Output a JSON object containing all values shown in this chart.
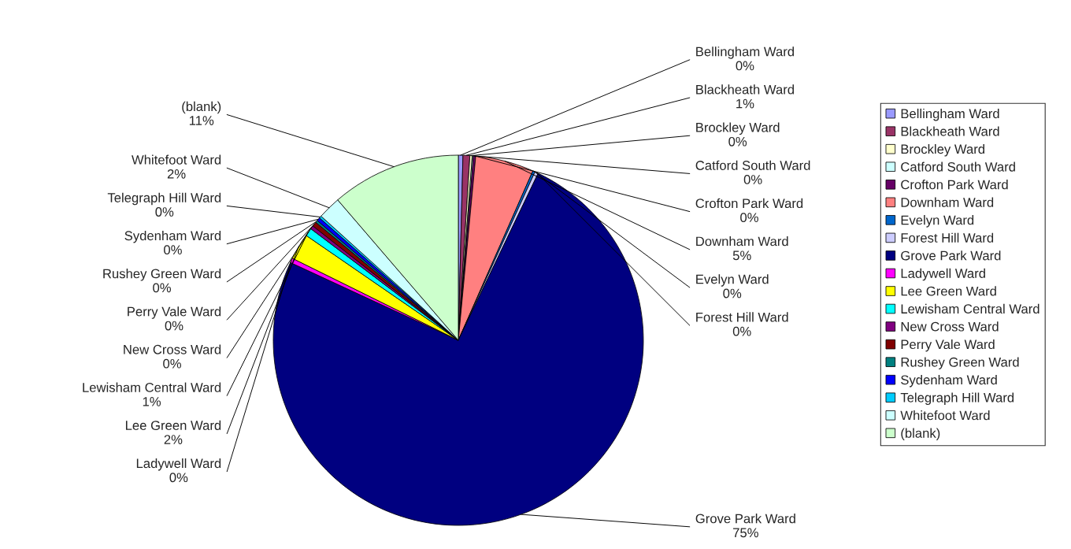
{
  "chart_data": {
    "type": "pie",
    "categories": [
      "Bellingham Ward",
      "Blackheath Ward",
      "Brockley Ward",
      "Catford South Ward",
      "Crofton Park Ward",
      "Downham Ward",
      "Evelyn Ward",
      "Forest Hill Ward",
      "Grove Park Ward",
      "Ladywell Ward",
      "Lee Green Ward",
      "Lewisham Central Ward",
      "New Cross Ward",
      "Perry Vale Ward",
      "Rushey Green Ward",
      "Sydenham Ward",
      "Telegraph Hill Ward",
      "Whitefoot Ward",
      "(blank)"
    ],
    "values": [
      0.4,
      0.6,
      0.2,
      0.1,
      0.2,
      5.1,
      0.2,
      0.3,
      74.8,
      0.4,
      2.3,
      0.7,
      0.3,
      0.4,
      0.2,
      0.3,
      0.2,
      2.0,
      11.3
    ],
    "value_labels": [
      "0%",
      "1%",
      "0%",
      "0%",
      "0%",
      "5%",
      "0%",
      "0%",
      "75%",
      "0%",
      "2%",
      "1%",
      "0%",
      "0%",
      "0%",
      "0%",
      "0%",
      "2%",
      "11%"
    ],
    "colors": [
      "#9999ff",
      "#993366",
      "#ffffcc",
      "#ccffff",
      "#660066",
      "#ff8080",
      "#0066cc",
      "#ccccff",
      "#000080",
      "#ff00ff",
      "#ffff00",
      "#00ffff",
      "#800080",
      "#800000",
      "#008080",
      "#0000ff",
      "#00ccff",
      "#ccffff",
      "#ccffcc"
    ],
    "legend": "right"
  }
}
